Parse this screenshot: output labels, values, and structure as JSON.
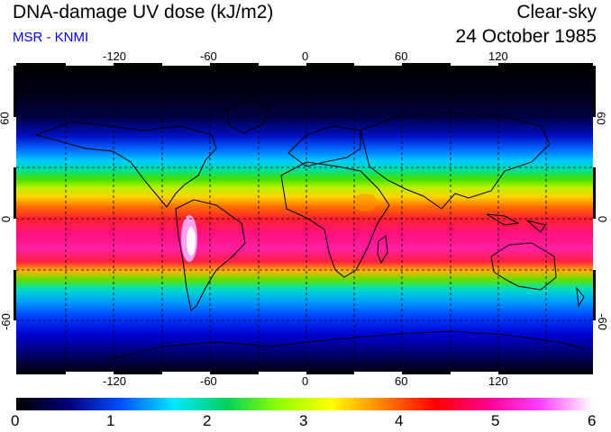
{
  "header": {
    "title": "DNA-damage UV dose (kJ/m2)",
    "source": "MSR - KNMI",
    "condition": "Clear-sky",
    "date": "24 October 1985"
  },
  "map": {
    "lon_ticks": [
      "-120",
      "-60",
      "0",
      "60",
      "120"
    ],
    "lon_values": [
      -120,
      -60,
      0,
      60,
      120
    ],
    "lat_ticks": [
      "60",
      "0",
      "-60"
    ],
    "lat_values": [
      60,
      0,
      -60
    ],
    "lon_range": [
      -180,
      180
    ],
    "lat_range": [
      -90,
      90
    ],
    "grid": "dashed"
  },
  "colorbar": {
    "labels": [
      "0",
      "1",
      "2",
      "3",
      "4",
      "5",
      "6"
    ],
    "min": 0,
    "max": 6,
    "colors": [
      "#000000",
      "#00007a",
      "#0050ff",
      "#00e8ff",
      "#00d060",
      "#90ff00",
      "#ffff00",
      "#ff8000",
      "#ff0000",
      "#ff0090",
      "#ff40ff",
      "#ffffff"
    ]
  }
}
